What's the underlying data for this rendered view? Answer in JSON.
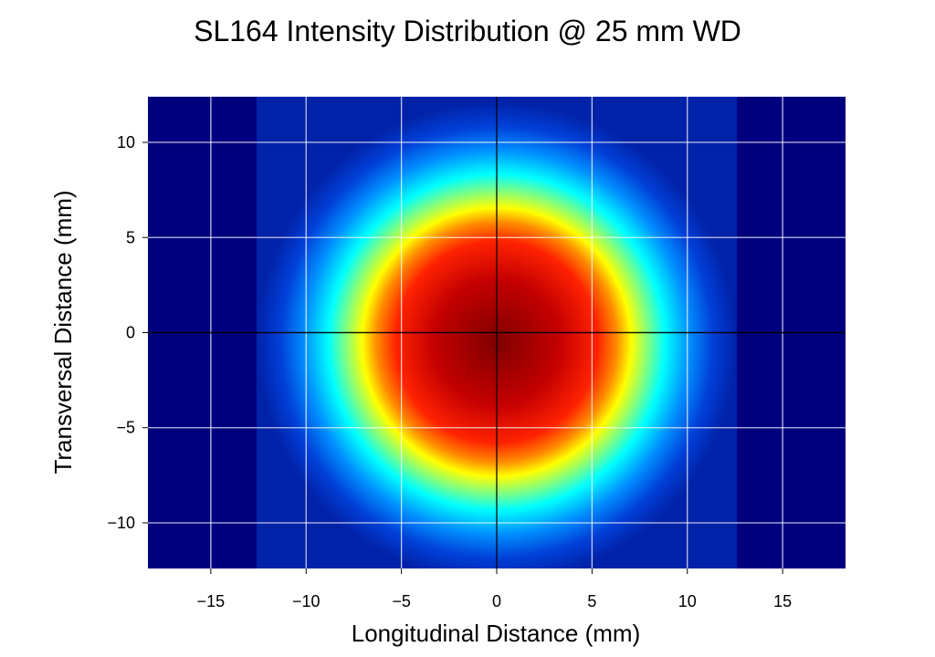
{
  "chart_data": {
    "type": "heatmap",
    "title": "SL164 Intensity Distribution @ 25 mm WD",
    "xlabel": "Longitudinal Distance (mm)",
    "ylabel": "Transversal Distance (mm)",
    "xlim": [
      -18.3,
      18.3
    ],
    "ylim": [
      -12.4,
      12.4
    ],
    "x_ticks": [
      -15,
      -10,
      -5,
      0,
      5,
      10,
      15
    ],
    "y_ticks": [
      -10,
      -5,
      0,
      5,
      10
    ],
    "x_tick_labels": [
      "−15",
      "−10",
      "−5",
      "0",
      "5",
      "10",
      "15"
    ],
    "y_tick_labels": [
      "−10",
      "−5",
      "0",
      "5",
      "10"
    ],
    "grid": true,
    "colormap": "jet",
    "colors": {
      "background_band": "#00007f",
      "grid": "#ffffff",
      "zero_axes": "#000000"
    },
    "distribution": {
      "shape": "radial",
      "center": [
        0,
        -0.5
      ],
      "peak_radius_mm": 6.3,
      "detector_x_range": [
        -12.6,
        12.6
      ]
    }
  }
}
